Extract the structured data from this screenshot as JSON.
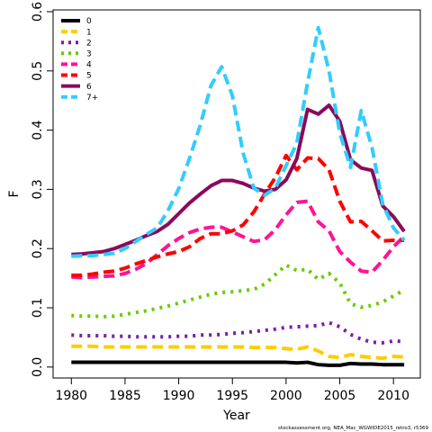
{
  "chart_data": {
    "type": "line",
    "xlabel": "Year",
    "ylabel": "F",
    "xlim": [
      1978.3,
      2012.5
    ],
    "ylim": [
      -0.0185,
      0.603
    ],
    "x_ticks": [
      1980,
      1985,
      1990,
      1995,
      2000,
      2005,
      2010
    ],
    "y_ticks": [
      0.0,
      0.1,
      0.2,
      0.3,
      0.4,
      0.5,
      0.6
    ],
    "x_tick_labels": [
      "1980",
      "1985",
      "1990",
      "1995",
      "2000",
      "2005",
      "2010"
    ],
    "y_tick_labels": [
      "0.0",
      "0.1",
      "0.2",
      "0.3",
      "0.4",
      "0.5",
      "0.6"
    ],
    "legend_position": "top-left",
    "footer": "stockassessment.org, NEA_Mac_WGWIDE2015_retro3, r5369",
    "x": [
      1980,
      1981,
      1982,
      1983,
      1984,
      1985,
      1986,
      1987,
      1988,
      1989,
      1990,
      1991,
      1992,
      1993,
      1994,
      1995,
      1996,
      1997,
      1998,
      1999,
      2000,
      2001,
      2002,
      2003,
      2004,
      2005,
      2006,
      2007,
      2008,
      2009,
      2010,
      2011
    ],
    "series": [
      {
        "name": "0",
        "color": "#000000",
        "dash": "",
        "width": 4,
        "values": [
          0.008,
          0.008,
          0.008,
          0.008,
          0.008,
          0.008,
          0.008,
          0.008,
          0.008,
          0.008,
          0.008,
          0.008,
          0.008,
          0.008,
          0.008,
          0.008,
          0.008,
          0.008,
          0.008,
          0.008,
          0.008,
          0.007,
          0.008,
          0.004,
          0.003,
          0.003,
          0.006,
          0.005,
          0.005,
          0.004,
          0.004,
          0.004
        ]
      },
      {
        "name": "1",
        "color": "#FFCC00",
        "dash": "12,6",
        "width": 4,
        "values": [
          0.035,
          0.035,
          0.035,
          0.034,
          0.034,
          0.034,
          0.034,
          0.034,
          0.034,
          0.034,
          0.034,
          0.034,
          0.034,
          0.034,
          0.034,
          0.034,
          0.034,
          0.033,
          0.033,
          0.033,
          0.031,
          0.03,
          0.034,
          0.027,
          0.018,
          0.016,
          0.021,
          0.018,
          0.016,
          0.015,
          0.018,
          0.017
        ]
      },
      {
        "name": "2",
        "color": "#7B1FA2",
        "dash": "3,6",
        "width": 4,
        "values": [
          0.054,
          0.053,
          0.053,
          0.053,
          0.052,
          0.052,
          0.051,
          0.051,
          0.051,
          0.051,
          0.052,
          0.052,
          0.054,
          0.054,
          0.055,
          0.057,
          0.058,
          0.06,
          0.062,
          0.064,
          0.067,
          0.068,
          0.069,
          0.07,
          0.075,
          0.068,
          0.055,
          0.047,
          0.042,
          0.041,
          0.044,
          0.043
        ]
      },
      {
        "name": "3",
        "color": "#66CC00",
        "dash": "3,6",
        "width": 4,
        "values": [
          0.087,
          0.086,
          0.086,
          0.085,
          0.086,
          0.089,
          0.092,
          0.095,
          0.099,
          0.103,
          0.108,
          0.113,
          0.118,
          0.123,
          0.126,
          0.127,
          0.129,
          0.131,
          0.14,
          0.156,
          0.172,
          0.163,
          0.165,
          0.148,
          0.158,
          0.142,
          0.107,
          0.101,
          0.104,
          0.11,
          0.12,
          0.13
        ]
      },
      {
        "name": "4",
        "color": "#FF1493",
        "dash": "12,6",
        "width": 4,
        "values": [
          0.152,
          0.151,
          0.152,
          0.153,
          0.154,
          0.158,
          0.165,
          0.175,
          0.19,
          0.205,
          0.217,
          0.227,
          0.233,
          0.236,
          0.236,
          0.228,
          0.22,
          0.212,
          0.215,
          0.232,
          0.257,
          0.278,
          0.28,
          0.245,
          0.23,
          0.195,
          0.177,
          0.162,
          0.16,
          0.18,
          0.203,
          0.221
        ]
      },
      {
        "name": "5",
        "color": "#FF0000",
        "dash": "12,6",
        "width": 4,
        "values": [
          0.155,
          0.155,
          0.157,
          0.16,
          0.162,
          0.167,
          0.174,
          0.18,
          0.186,
          0.191,
          0.195,
          0.203,
          0.217,
          0.225,
          0.225,
          0.23,
          0.24,
          0.262,
          0.292,
          0.32,
          0.357,
          0.333,
          0.353,
          0.352,
          0.333,
          0.28,
          0.245,
          0.246,
          0.23,
          0.213,
          0.214,
          0.214
        ]
      },
      {
        "name": "6",
        "color": "#8B0A5A",
        "dash": "",
        "width": 4,
        "values": [
          0.19,
          0.191,
          0.193,
          0.195,
          0.2,
          0.207,
          0.214,
          0.222,
          0.229,
          0.241,
          0.259,
          0.277,
          0.292,
          0.306,
          0.315,
          0.315,
          0.31,
          0.302,
          0.297,
          0.3,
          0.316,
          0.352,
          0.435,
          0.427,
          0.442,
          0.415,
          0.35,
          0.336,
          0.332,
          0.272,
          0.254,
          0.229
        ]
      },
      {
        "name": "7+",
        "color": "#33CCFF",
        "dash": "12,6",
        "width": 4,
        "values": [
          0.187,
          0.188,
          0.188,
          0.19,
          0.192,
          0.2,
          0.212,
          0.224,
          0.235,
          0.264,
          0.301,
          0.352,
          0.408,
          0.475,
          0.507,
          0.458,
          0.361,
          0.302,
          0.29,
          0.302,
          0.34,
          0.378,
          0.48,
          0.573,
          0.5,
          0.395,
          0.337,
          0.433,
          0.371,
          0.275,
          0.235,
          0.214
        ]
      }
    ]
  }
}
